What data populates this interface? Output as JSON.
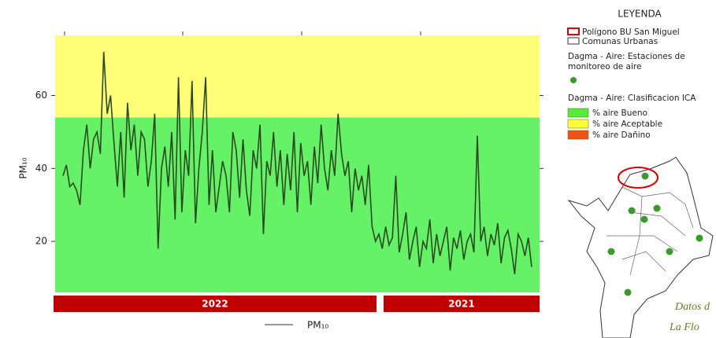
{
  "chart_data": {
    "type": "line",
    "y_label": "PM₁₀",
    "ylim": [
      6,
      76.5
    ],
    "yticks": [
      20,
      40,
      60
    ],
    "bands": [
      {
        "from": 6,
        "to": 54,
        "color": "#66f266"
      },
      {
        "from": 54,
        "to": 76.5,
        "color": "#ffff77"
      }
    ],
    "series": [
      {
        "name": "PM₁₀",
        "color": "#2a4a22",
        "values": [
          38,
          41,
          35,
          36,
          34,
          30,
          45,
          52,
          40,
          48,
          50,
          44,
          72,
          55,
          60,
          47,
          35,
          50,
          32,
          58,
          45,
          52,
          38,
          50,
          48,
          35,
          42,
          55,
          18,
          40,
          46,
          35,
          50,
          26,
          65,
          28,
          45,
          38,
          64,
          25,
          40,
          50,
          65,
          30,
          45,
          28,
          35,
          42,
          38,
          28,
          50,
          45,
          32,
          48,
          34,
          27,
          45,
          40,
          52,
          22,
          42,
          38,
          50,
          35,
          45,
          30,
          44,
          34,
          50,
          28,
          47,
          38,
          42,
          30,
          46,
          36,
          52,
          40,
          34,
          45,
          38,
          55,
          44,
          38,
          42,
          28,
          40,
          34,
          38,
          30,
          41,
          24,
          20,
          22,
          18,
          24,
          19,
          21,
          38,
          17,
          22,
          28,
          15,
          20,
          24,
          13,
          20,
          18,
          26,
          14,
          22,
          16,
          20,
          24,
          12,
          21,
          18,
          23,
          15,
          20,
          22,
          17,
          49,
          20,
          24,
          16,
          22,
          19,
          25,
          14,
          21,
          23,
          18,
          11,
          22,
          20,
          16,
          21,
          13
        ]
      }
    ],
    "periods": [
      "2022",
      "2021"
    ]
  },
  "legend_panel": {
    "title": "LEYENDA",
    "boundary": "Polígono BU San Miguel",
    "communes": "Comunas Urbanas",
    "stations_title": [
      "Dagma - Aire: Estaciones de",
      "monitoreo de aire"
    ],
    "ica_title": "Dagma - Aire: Clasificacion ICA",
    "ica_items": [
      {
        "label": "% aire Bueno",
        "color": "#55ee33"
      },
      {
        "label": "% aire Aceptable",
        "color": "#ffff33"
      },
      {
        "label": "% aire Dañino",
        "color": "#ee5511"
      }
    ]
  },
  "map_note": [
    "Datos d",
    "La Flo"
  ]
}
